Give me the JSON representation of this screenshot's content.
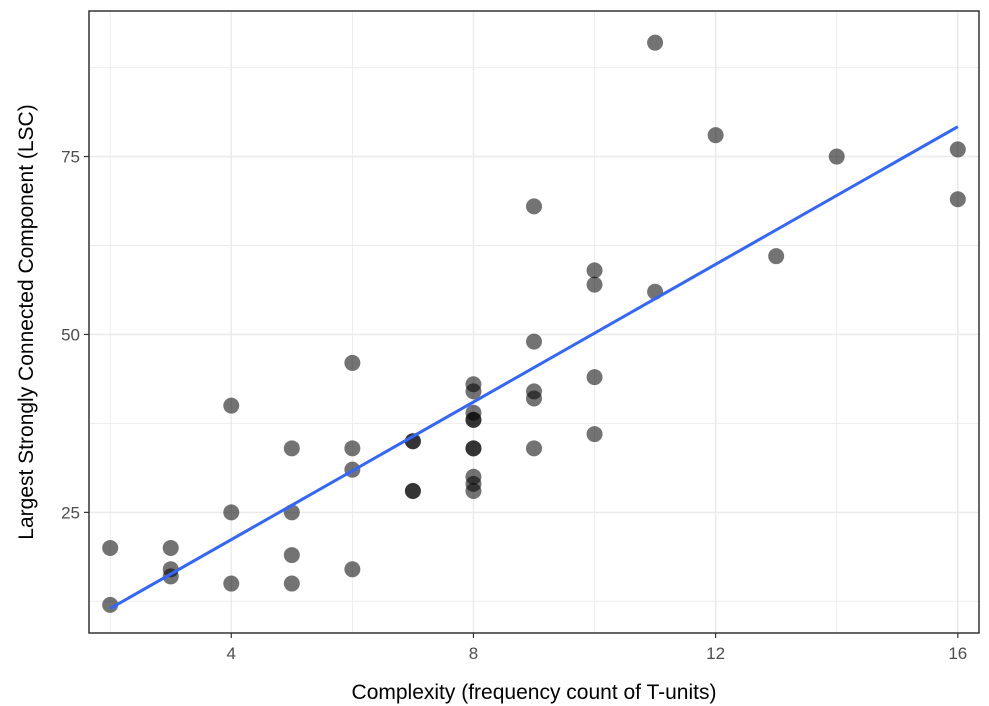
{
  "chart_data": {
    "type": "scatter",
    "title": "",
    "xlabel": "Complexity (frequency count of T-units)",
    "ylabel": "Largest Strongly Connected Component (LSC)",
    "xlim": [
      1.65,
      16.35
    ],
    "ylim": [
      8.05,
      95.45
    ],
    "x_ticks": [
      4,
      8,
      12,
      16
    ],
    "y_ticks": [
      25,
      50,
      75
    ],
    "x_minor_ticks": [
      2,
      6,
      10,
      14
    ],
    "y_minor_ticks": [
      12.5,
      37.5,
      62.5,
      87.5
    ],
    "grid": true,
    "theme": "bw",
    "colors": {
      "point": "#000000",
      "point_opacity": 0.55,
      "fit_line": "#3366FF",
      "grid": "#ebebeb",
      "panel_border": "#333333",
      "tick_label": "#4d4d4d"
    },
    "series": [
      {
        "points": [
          [
            2,
            20
          ],
          [
            2,
            12
          ],
          [
            3,
            20
          ],
          [
            3,
            17
          ],
          [
            3,
            16
          ],
          [
            4,
            40
          ],
          [
            4,
            25
          ],
          [
            4,
            15
          ],
          [
            5,
            34
          ],
          [
            5,
            25
          ],
          [
            5,
            19
          ],
          [
            5,
            15
          ],
          [
            6,
            46
          ],
          [
            6,
            34
          ],
          [
            6,
            31
          ],
          [
            6,
            17
          ],
          [
            7,
            35
          ],
          [
            7,
            35
          ],
          [
            7,
            28
          ],
          [
            7,
            28
          ],
          [
            8,
            43
          ],
          [
            8,
            42
          ],
          [
            8,
            39
          ],
          [
            8,
            38
          ],
          [
            8,
            38
          ],
          [
            8,
            34
          ],
          [
            8,
            34
          ],
          [
            8,
            30
          ],
          [
            8,
            29
          ],
          [
            8,
            28
          ],
          [
            9,
            68
          ],
          [
            9,
            49
          ],
          [
            9,
            42
          ],
          [
            9,
            41
          ],
          [
            9,
            34
          ],
          [
            10,
            59
          ],
          [
            10,
            57
          ],
          [
            10,
            44
          ],
          [
            10,
            36
          ],
          [
            11,
            91
          ],
          [
            11,
            56
          ],
          [
            12,
            78
          ],
          [
            13,
            61
          ],
          [
            14,
            75
          ],
          [
            16,
            76
          ],
          [
            16,
            69
          ]
        ]
      }
    ],
    "fit_line": {
      "method": "lm",
      "x": [
        2,
        16
      ],
      "y": [
        11.5,
        79.2
      ]
    }
  }
}
